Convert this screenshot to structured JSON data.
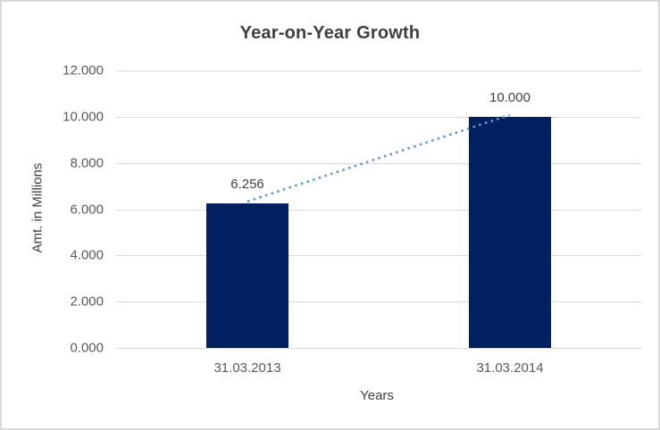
{
  "chart_data": {
    "type": "bar",
    "title": "Year-on-Year Growth",
    "xlabel": "Years",
    "ylabel": "Amt. in Millions",
    "categories": [
      "31.03.2013",
      "31.03.2014"
    ],
    "values": [
      6.256,
      10.0
    ],
    "data_labels": [
      "6.256",
      "10.000"
    ],
    "y_ticks": [
      "0.000",
      "2.000",
      "4.000",
      "6.000",
      "8.000",
      "10.000",
      "12.000"
    ],
    "y_tick_values": [
      0,
      2,
      4,
      6,
      8,
      10,
      12
    ],
    "ylim": [
      0,
      12
    ],
    "grid": true,
    "legend": false,
    "trendline": {
      "style": "dotted",
      "from_category": "31.03.2013",
      "to_category": "31.03.2014"
    }
  },
  "colors": {
    "bar": "#002060",
    "trendline": "#5b9bd5",
    "gridline": "#d9d9d9",
    "frame_border": "#d9d9d9",
    "title_text": "#3f3f3f",
    "tick_text": "#595959",
    "label_text": "#404040",
    "background": "#ffffff"
  }
}
